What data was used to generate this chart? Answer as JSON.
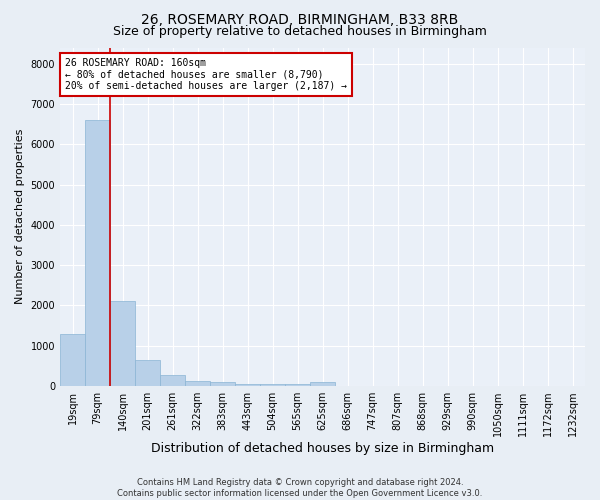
{
  "title1": "26, ROSEMARY ROAD, BIRMINGHAM, B33 8RB",
  "title2": "Size of property relative to detached houses in Birmingham",
  "xlabel": "Distribution of detached houses by size in Birmingham",
  "ylabel": "Number of detached properties",
  "footnote1": "Contains HM Land Registry data © Crown copyright and database right 2024.",
  "footnote2": "Contains public sector information licensed under the Open Government Licence v3.0.",
  "bar_labels": [
    "19sqm",
    "79sqm",
    "140sqm",
    "201sqm",
    "261sqm",
    "322sqm",
    "383sqm",
    "443sqm",
    "504sqm",
    "565sqm",
    "625sqm",
    "686sqm",
    "747sqm",
    "807sqm",
    "868sqm",
    "929sqm",
    "990sqm",
    "1050sqm",
    "1111sqm",
    "1172sqm",
    "1232sqm"
  ],
  "bar_values": [
    1300,
    6600,
    2100,
    650,
    280,
    130,
    90,
    50,
    50,
    50,
    110,
    0,
    0,
    0,
    0,
    0,
    0,
    0,
    0,
    0,
    0
  ],
  "bar_color": "#b8d0e8",
  "bar_edge_color": "#8ab4d4",
  "property_line_x": 1.5,
  "property_line_color": "#cc0000",
  "annotation_line1": "26 ROSEMARY ROAD: 160sqm",
  "annotation_line2": "← 80% of detached houses are smaller (8,790)",
  "annotation_line3": "20% of semi-detached houses are larger (2,187) →",
  "annotation_box_color": "#ffffff",
  "annotation_box_edge_color": "#cc0000",
  "ylim": [
    0,
    8400
  ],
  "yticks": [
    0,
    1000,
    2000,
    3000,
    4000,
    5000,
    6000,
    7000,
    8000
  ],
  "bg_color": "#e8eef5",
  "plot_bg_color": "#eaf0f8",
  "grid_color": "#ffffff",
  "title1_fontsize": 10,
  "title2_fontsize": 9,
  "xlabel_fontsize": 9,
  "ylabel_fontsize": 8,
  "tick_fontsize": 7,
  "annot_fontsize": 7
}
